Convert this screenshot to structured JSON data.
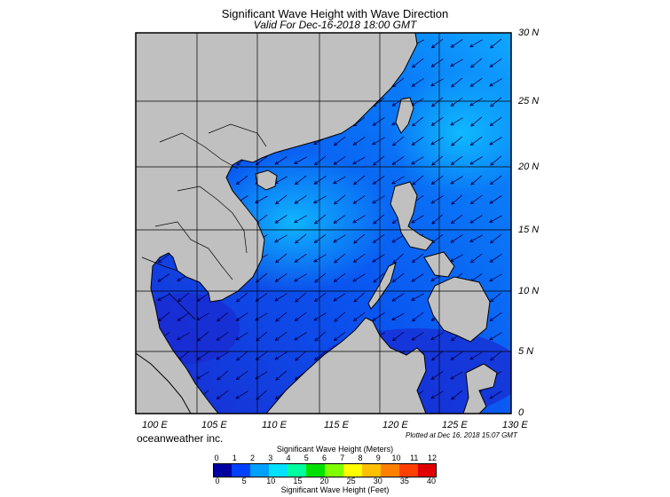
{
  "title": "Significant Wave Height with Wave Direction",
  "subtitle": "Valid For Dec-16-2018 18:00 GMT",
  "lat_labels": [
    "30 N",
    "25 N",
    "20 N",
    "15 N",
    "10 N",
    "5 N",
    "0"
  ],
  "lon_labels": [
    "100 E",
    "105 E",
    "110 E",
    "115 E",
    "120 E",
    "125 E",
    "130 E"
  ],
  "company": "oceanweather inc.",
  "plotted": "Plotted at Dec 16, 2018 15:07 GMT",
  "colorbar": {
    "title_meters": "Significant Wave Height (Meters)",
    "title_feet": "Significant Wave Height (Feet)",
    "meters_ticks": [
      "0",
      "1",
      "2",
      "3",
      "4",
      "5",
      "6",
      "7",
      "8",
      "9",
      "10",
      "11",
      "12"
    ],
    "feet_ticks": [
      "0",
      "5",
      "10",
      "15",
      "20",
      "25",
      "30",
      "35",
      "40"
    ],
    "colors": [
      "#0000a0",
      "#0040ff",
      "#00a0ff",
      "#00e0ff",
      "#00ffa0",
      "#00e000",
      "#80ff00",
      "#ffff00",
      "#ffc000",
      "#ff8000",
      "#ff4000",
      "#e00000"
    ]
  },
  "colors": {
    "land": "#c0c0c0",
    "sea_low": "#1a2ad0",
    "sea_mid": "#0a55f0",
    "sea_high": "#10a8ff",
    "arrow": "#000050"
  }
}
